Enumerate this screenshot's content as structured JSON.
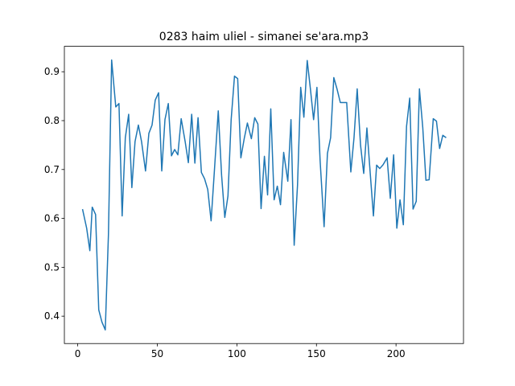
{
  "chart_data": {
    "type": "line",
    "title": "0283 haim uliel - simanei se'ara.mp3",
    "x": [
      3.0,
      5.6,
      7.6,
      9.1,
      11.2,
      13.2,
      15.2,
      17.3,
      19.3,
      21.3,
      23.9,
      25.9,
      27.9,
      29.9,
      32.0,
      34.0,
      36.0,
      38.1,
      40.1,
      42.6,
      44.7,
      46.7,
      48.7,
      50.8,
      52.8,
      54.8,
      56.9,
      58.9,
      60.9,
      62.9,
      65.0,
      67.5,
      69.5,
      71.6,
      73.6,
      75.6,
      77.7,
      79.7,
      81.7,
      83.8,
      85.8,
      88.3,
      90.4,
      92.4,
      94.4,
      96.4,
      98.5,
      100.5,
      102.5,
      104.6,
      106.6,
      109.1,
      111.2,
      113.2,
      115.2,
      117.3,
      119.3,
      121.3,
      123.4,
      125.4,
      127.4,
      129.4,
      132.0,
      134.0,
      136.0,
      138.1,
      140.1,
      142.1,
      144.2,
      146.2,
      148.2,
      150.3,
      152.3,
      154.8,
      156.9,
      158.9,
      160.9,
      162.9,
      165.0,
      167.0,
      169.0,
      171.6,
      173.6,
      175.6,
      177.7,
      179.7,
      181.7,
      183.8,
      185.8,
      187.8,
      189.8,
      191.9,
      194.4,
      196.4,
      198.5,
      200.5,
      202.5,
      204.6,
      206.6,
      208.6,
      210.7,
      212.7,
      214.7,
      216.8,
      218.8,
      220.8,
      223.4,
      225.4,
      227.4,
      229.4,
      231.5
    ],
    "series": [
      {
        "color": "#1f77b4",
        "values": [
          0.619,
          0.58,
          0.534,
          0.623,
          0.608,
          0.413,
          0.388,
          0.372,
          0.568,
          0.924,
          0.828,
          0.835,
          0.605,
          0.765,
          0.813,
          0.663,
          0.757,
          0.791,
          0.757,
          0.697,
          0.774,
          0.791,
          0.842,
          0.857,
          0.697,
          0.802,
          0.835,
          0.728,
          0.741,
          0.73,
          0.804,
          0.757,
          0.714,
          0.813,
          0.713,
          0.806,
          0.694,
          0.681,
          0.659,
          0.595,
          0.694,
          0.82,
          0.688,
          0.602,
          0.646,
          0.802,
          0.891,
          0.886,
          0.724,
          0.763,
          0.795,
          0.763,
          0.806,
          0.793,
          0.62,
          0.727,
          0.648,
          0.824,
          0.638,
          0.666,
          0.628,
          0.735,
          0.676,
          0.802,
          0.545,
          0.668,
          0.868,
          0.807,
          0.923,
          0.865,
          0.802,
          0.868,
          0.718,
          0.583,
          0.733,
          0.765,
          0.888,
          0.865,
          0.837,
          0.837,
          0.837,
          0.695,
          0.765,
          0.865,
          0.75,
          0.692,
          0.785,
          0.692,
          0.605,
          0.709,
          0.702,
          0.71,
          0.724,
          0.641,
          0.73,
          0.58,
          0.638,
          0.587,
          0.788,
          0.846,
          0.619,
          0.635,
          0.865,
          0.786,
          0.678,
          0.679,
          0.804,
          0.799,
          0.743,
          0.77,
          0.765
        ]
      }
    ],
    "xlim": [
      -8.4,
      242.4
    ],
    "xticks": [
      0,
      50,
      100,
      150,
      200
    ],
    "ylim": [
      0.344,
      0.952
    ],
    "yticks": [
      0.4,
      0.5,
      0.6,
      0.7,
      0.8,
      0.9
    ]
  }
}
